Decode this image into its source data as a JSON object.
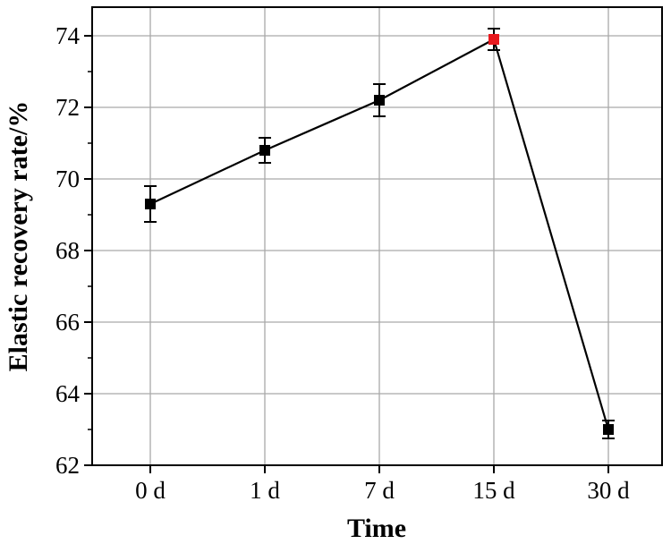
{
  "chart_data": {
    "type": "line",
    "title": "",
    "xlabel": "Time",
    "ylabel": "Elastic recovery rate/%",
    "categories": [
      "0 d",
      "1 d",
      "7 d",
      "15 d",
      "30 d"
    ],
    "series": [
      {
        "values": [
          69.3,
          70.8,
          72.2,
          73.9,
          63.0
        ],
        "error": [
          0.5,
          0.35,
          0.45,
          0.3,
          0.25
        ],
        "marker_colors": [
          "#000000",
          "#000000",
          "#000000",
          "#e8191e",
          "#000000"
        ]
      }
    ],
    "ylim": [
      62,
      74.8
    ],
    "yticks": [
      62,
      64,
      66,
      68,
      70,
      72,
      74
    ],
    "grid": true,
    "legend": "none"
  }
}
